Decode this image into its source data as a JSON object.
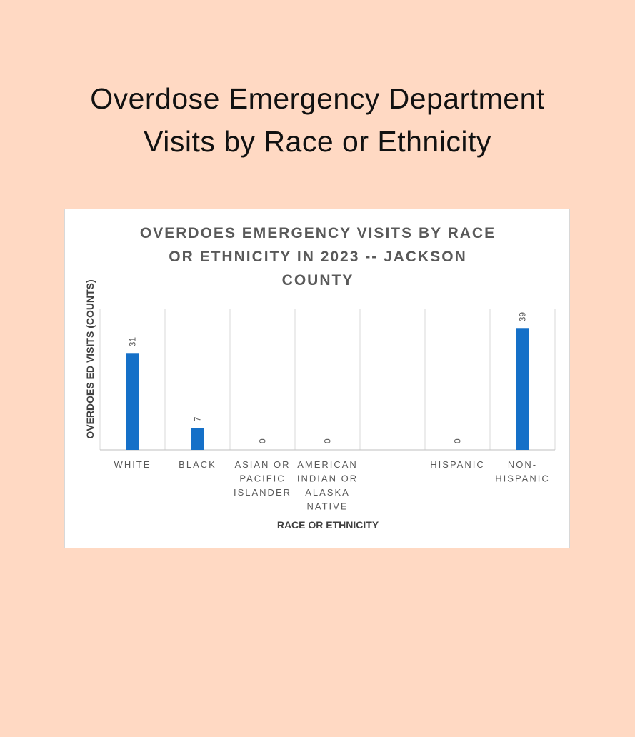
{
  "page": {
    "title_line1": "Overdose Emergency Department",
    "title_line2": "Visits by Race or Ethnicity"
  },
  "chart_data": {
    "type": "bar",
    "title_lines": [
      "OVERDOES EMERGENCY VISITS BY RACE",
      "OR ETHNICITY IN 2023 -- JACKSON",
      "COUNTY"
    ],
    "categories": [
      [
        "WHITE"
      ],
      [
        "BLACK"
      ],
      [
        "ASIAN OR",
        "PACIFIC",
        "ISLANDER"
      ],
      [
        "AMERICAN",
        "INDIAN OR",
        "ALASKA",
        "NATIVE"
      ],
      [],
      [
        "HISPANIC"
      ],
      [
        "NON-",
        "HISPANIC"
      ]
    ],
    "values": [
      31,
      7,
      0,
      0,
      null,
      0,
      39
    ],
    "xlabel": "RACE OR ETHNICITY",
    "ylabel": "OVERDOES ED VISITS (COUNTS)",
    "ylim": [
      0,
      45
    ],
    "bar_color": "#1570c8",
    "grid": "vertical category separators"
  }
}
